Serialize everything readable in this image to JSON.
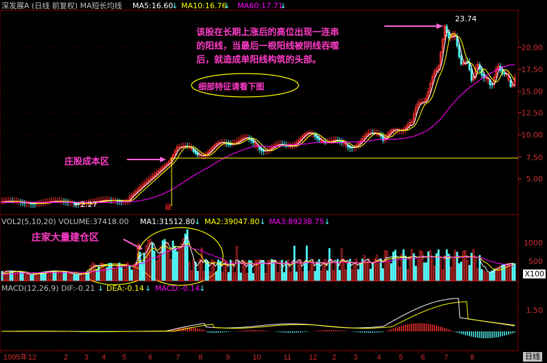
{
  "header": {
    "title": "深发展A (日线 前复权) MA短长均线",
    "ma5": "MA5:16.60",
    "ma10": "MA10:16.76",
    "ma60": "MA60:17.71"
  },
  "price_axis": [
    "20.00",
    "17.50",
    "15.00",
    "12.50",
    "10.00",
    "7.50",
    "5.00"
  ],
  "annotations": {
    "peak_label": "23.74",
    "low_label": "←2.27",
    "note_line1": "该股在长期上涨后的高位出现一连串",
    "note_line2": "的阳线，当最后一根阳线被阴线吞噬",
    "note_line3": "后，就造成单阳线构筑的头部。",
    "detail_note": "细部特征请看下图",
    "cost_zone": "庄股成本区",
    "accumulation": "庄家大量建仓区",
    "signal_char": "藏"
  },
  "volume": {
    "title": "VOL2(5,10,20) VOLUME:37418.00",
    "ma1": "MA1:31512.80",
    "ma2": "MA2:39047.80",
    "ma3": "MA3:89238.75",
    "axis": [
      "1000",
      "500"
    ],
    "unit": "X100"
  },
  "macd": {
    "title": "MACD(12,26,9) DIF:-0.21",
    "dea": "DEA:-0.14",
    "macd": "MACD:-0.14",
    "axis": [
      "1.50"
    ]
  },
  "time_axis": {
    "labels": [
      "1995年",
      "12",
      "2",
      "3",
      "4",
      "5",
      "6",
      "7",
      "8",
      "9",
      "10",
      "11",
      "12",
      "2",
      "3",
      "4",
      "5",
      "6",
      "7",
      "8"
    ],
    "period": "日线"
  },
  "colors": {
    "up": "#ff3232",
    "down": "#54ffff",
    "ma5": "#ffffff",
    "ma10": "#ffff00",
    "ma60": "#ff00ff",
    "grid": "#8b0000",
    "note": "#ff3cc8"
  }
}
